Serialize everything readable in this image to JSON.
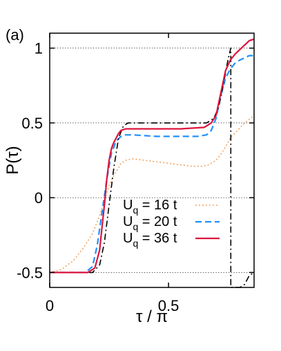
{
  "chart_data": {
    "type": "line",
    "panel_label": "(a)",
    "xlabel": "τ / π",
    "ylabel": "P(τ)",
    "xlim": [
      0,
      0.86
    ],
    "ylim": [
      -0.6,
      1.1
    ],
    "xticks": [
      {
        "value": 0,
        "label": "0"
      },
      {
        "value": 0.5,
        "label": "0.5"
      }
    ],
    "yticks": [
      {
        "value": -0.5,
        "label": "-0.5"
      },
      {
        "value": 0,
        "label": "0"
      },
      {
        "value": 0.5,
        "label": "0.5"
      },
      {
        "value": 1,
        "label": "1"
      }
    ],
    "grid": "horizontal dotted at y ticks",
    "legend_position": "lower-center",
    "colors": {
      "orange": "#f4a460",
      "blue": "#1e90ff",
      "red": "#dc143c",
      "black": "#000000"
    },
    "series": [
      {
        "name": "U_q = 16 t",
        "legend_main": "U",
        "legend_sub": "q",
        "legend_rest": " = 16 t",
        "style": "dotted",
        "color": "#f4a460",
        "x": [
          0,
          0.05,
          0.1,
          0.14,
          0.18,
          0.21,
          0.23,
          0.25,
          0.27,
          0.29,
          0.3,
          0.32,
          0.35,
          0.4,
          0.45,
          0.5,
          0.55,
          0.6,
          0.64,
          0.67,
          0.7,
          0.72,
          0.74,
          0.76,
          0.79,
          0.82,
          0.86
        ],
        "y": [
          -0.5,
          -0.48,
          -0.42,
          -0.34,
          -0.24,
          -0.12,
          -0.02,
          0.08,
          0.15,
          0.2,
          0.23,
          0.25,
          0.26,
          0.25,
          0.24,
          0.23,
          0.22,
          0.21,
          0.21,
          0.22,
          0.25,
          0.29,
          0.34,
          0.4,
          0.45,
          0.5,
          0.55
        ]
      },
      {
        "name": "U_q = 20 t",
        "legend_main": "U",
        "legend_sub": "q",
        "legend_rest": " = 20 t",
        "style": "dashed",
        "color": "#1e90ff",
        "x": [
          0,
          0.15,
          0.18,
          0.2,
          0.22,
          0.24,
          0.26,
          0.28,
          0.3,
          0.32,
          0.35,
          0.45,
          0.55,
          0.62,
          0.66,
          0.68,
          0.7,
          0.72,
          0.74,
          0.76,
          0.78,
          0.8,
          0.84,
          0.86
        ],
        "y": [
          -0.5,
          -0.5,
          -0.46,
          -0.32,
          -0.1,
          0.12,
          0.3,
          0.38,
          0.41,
          0.42,
          0.42,
          0.41,
          0.41,
          0.41,
          0.42,
          0.45,
          0.53,
          0.68,
          0.8,
          0.86,
          0.9,
          0.92,
          0.95,
          0.95
        ]
      },
      {
        "name": "U_q = 36 t",
        "legend_main": "U",
        "legend_sub": "q",
        "legend_rest": " = 36 t",
        "style": "solid",
        "color": "#dc143c",
        "x": [
          0,
          0.16,
          0.19,
          0.21,
          0.22,
          0.23,
          0.24,
          0.25,
          0.26,
          0.27,
          0.28,
          0.29,
          0.3,
          0.32,
          0.35,
          0.45,
          0.55,
          0.65,
          0.68,
          0.7,
          0.72,
          0.74,
          0.76,
          0.78,
          0.8,
          0.82,
          0.84,
          0.86
        ],
        "y": [
          -0.5,
          -0.5,
          -0.47,
          -0.35,
          -0.2,
          -0.05,
          0.12,
          0.25,
          0.33,
          0.37,
          0.4,
          0.43,
          0.45,
          0.46,
          0.46,
          0.46,
          0.46,
          0.47,
          0.5,
          0.55,
          0.7,
          0.85,
          0.92,
          0.96,
          0.99,
          1.02,
          1.05,
          1.06
        ]
      },
      {
        "name": "",
        "style": "dash-dot",
        "color": "#000000",
        "x": [
          0,
          0.18,
          0.21,
          0.23,
          0.25,
          0.27,
          0.29,
          0.31,
          0.33,
          0.5,
          0.66,
          0.69,
          0.71,
          0.73,
          0.75,
          0.762,
          0.762,
          0.8,
          0.82,
          0.84,
          0.86
        ],
        "y": [
          -0.5,
          -0.5,
          -0.45,
          -0.3,
          -0.05,
          0.2,
          0.4,
          0.48,
          0.5,
          0.5,
          0.5,
          0.53,
          0.6,
          0.75,
          0.92,
          1.0,
          -0.6,
          -0.6,
          -0.58,
          -0.52,
          -0.5
        ]
      }
    ]
  }
}
